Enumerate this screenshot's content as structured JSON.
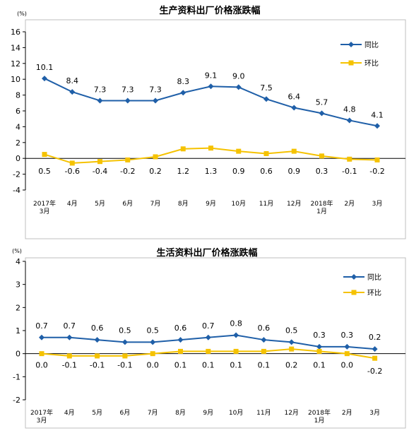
{
  "colors": {
    "yoy": "#1F5FA8",
    "mom": "#F5C200",
    "axis": "#000000",
    "frame": "#BFBFBF"
  },
  "chart_data": [
    {
      "type": "line",
      "title": "生产资料出厂价格涨跌幅",
      "unit": "(%)",
      "ylim": [
        -4,
        16
      ],
      "yticks": [
        "16",
        "14",
        "12",
        "10",
        "8",
        "6",
        "4",
        "2",
        "0",
        "-2",
        "-4"
      ],
      "categories": [
        [
          "2017年",
          "3月"
        ],
        [
          "4月"
        ],
        [
          "5月"
        ],
        [
          "6月"
        ],
        [
          "7月"
        ],
        [
          "8月"
        ],
        [
          "9月"
        ],
        [
          "10月"
        ],
        [
          "11月"
        ],
        [
          "12月"
        ],
        [
          "2018年",
          "1月"
        ],
        [
          "2月"
        ],
        [
          "3月"
        ]
      ],
      "legend": "top-right",
      "series": [
        {
          "name": "同比",
          "values": [
            10.1,
            8.4,
            7.3,
            7.3,
            7.3,
            8.3,
            9.1,
            9.0,
            7.5,
            6.4,
            5.7,
            4.8,
            4.1
          ],
          "labels": [
            "10.1",
            "8.4",
            "7.3",
            "7.3",
            "7.3",
            "8.3",
            "9.1",
            "9.0",
            "7.5",
            "6.4",
            "5.7",
            "4.8",
            "4.1"
          ]
        },
        {
          "name": "环比",
          "values": [
            0.5,
            -0.6,
            -0.4,
            -0.2,
            0.2,
            1.2,
            1.3,
            0.9,
            0.6,
            0.9,
            0.3,
            -0.1,
            -0.2
          ],
          "labels": [
            "0.5",
            "-0.6",
            "-0.4",
            "-0.2",
            "0.2",
            "1.2",
            "1.3",
            "0.9",
            "0.6",
            "0.9",
            "0.3",
            "-0.1",
            "-0.2"
          ]
        }
      ]
    },
    {
      "type": "line",
      "title": "生活资料出厂价格涨跌幅",
      "unit": "(%)",
      "ylim": [
        -2,
        4
      ],
      "yticks": [
        "4",
        "3",
        "2",
        "1",
        "0",
        "-1",
        "-2"
      ],
      "categories": [
        [
          "2017年",
          "3月"
        ],
        [
          "4月"
        ],
        [
          "5月"
        ],
        [
          "6月"
        ],
        [
          "7月"
        ],
        [
          "8月"
        ],
        [
          "9月"
        ],
        [
          "10月"
        ],
        [
          "11月"
        ],
        [
          "12月"
        ],
        [
          "2018年",
          "1月"
        ],
        [
          "2月"
        ],
        [
          "3月"
        ]
      ],
      "legend": "top-right",
      "series": [
        {
          "name": "同比",
          "values": [
            0.7,
            0.7,
            0.6,
            0.5,
            0.5,
            0.6,
            0.7,
            0.8,
            0.6,
            0.5,
            0.3,
            0.3,
            0.2
          ],
          "labels": [
            "0.7",
            "0.7",
            "0.6",
            "0.5",
            "0.5",
            "0.6",
            "0.7",
            "0.8",
            "0.6",
            "0.5",
            "0.3",
            "0.3",
            "0.2"
          ]
        },
        {
          "name": "环比",
          "values": [
            0.0,
            -0.1,
            -0.1,
            -0.1,
            0.0,
            0.1,
            0.1,
            0.1,
            0.1,
            0.2,
            0.1,
            0.0,
            -0.2
          ],
          "labels": [
            "0.0",
            "-0.1",
            "-0.1",
            "-0.1",
            "0.0",
            "0.1",
            "0.1",
            "0.1",
            "0.1",
            "0.2",
            "0.1",
            "0.0",
            "-0.2"
          ]
        }
      ]
    }
  ]
}
